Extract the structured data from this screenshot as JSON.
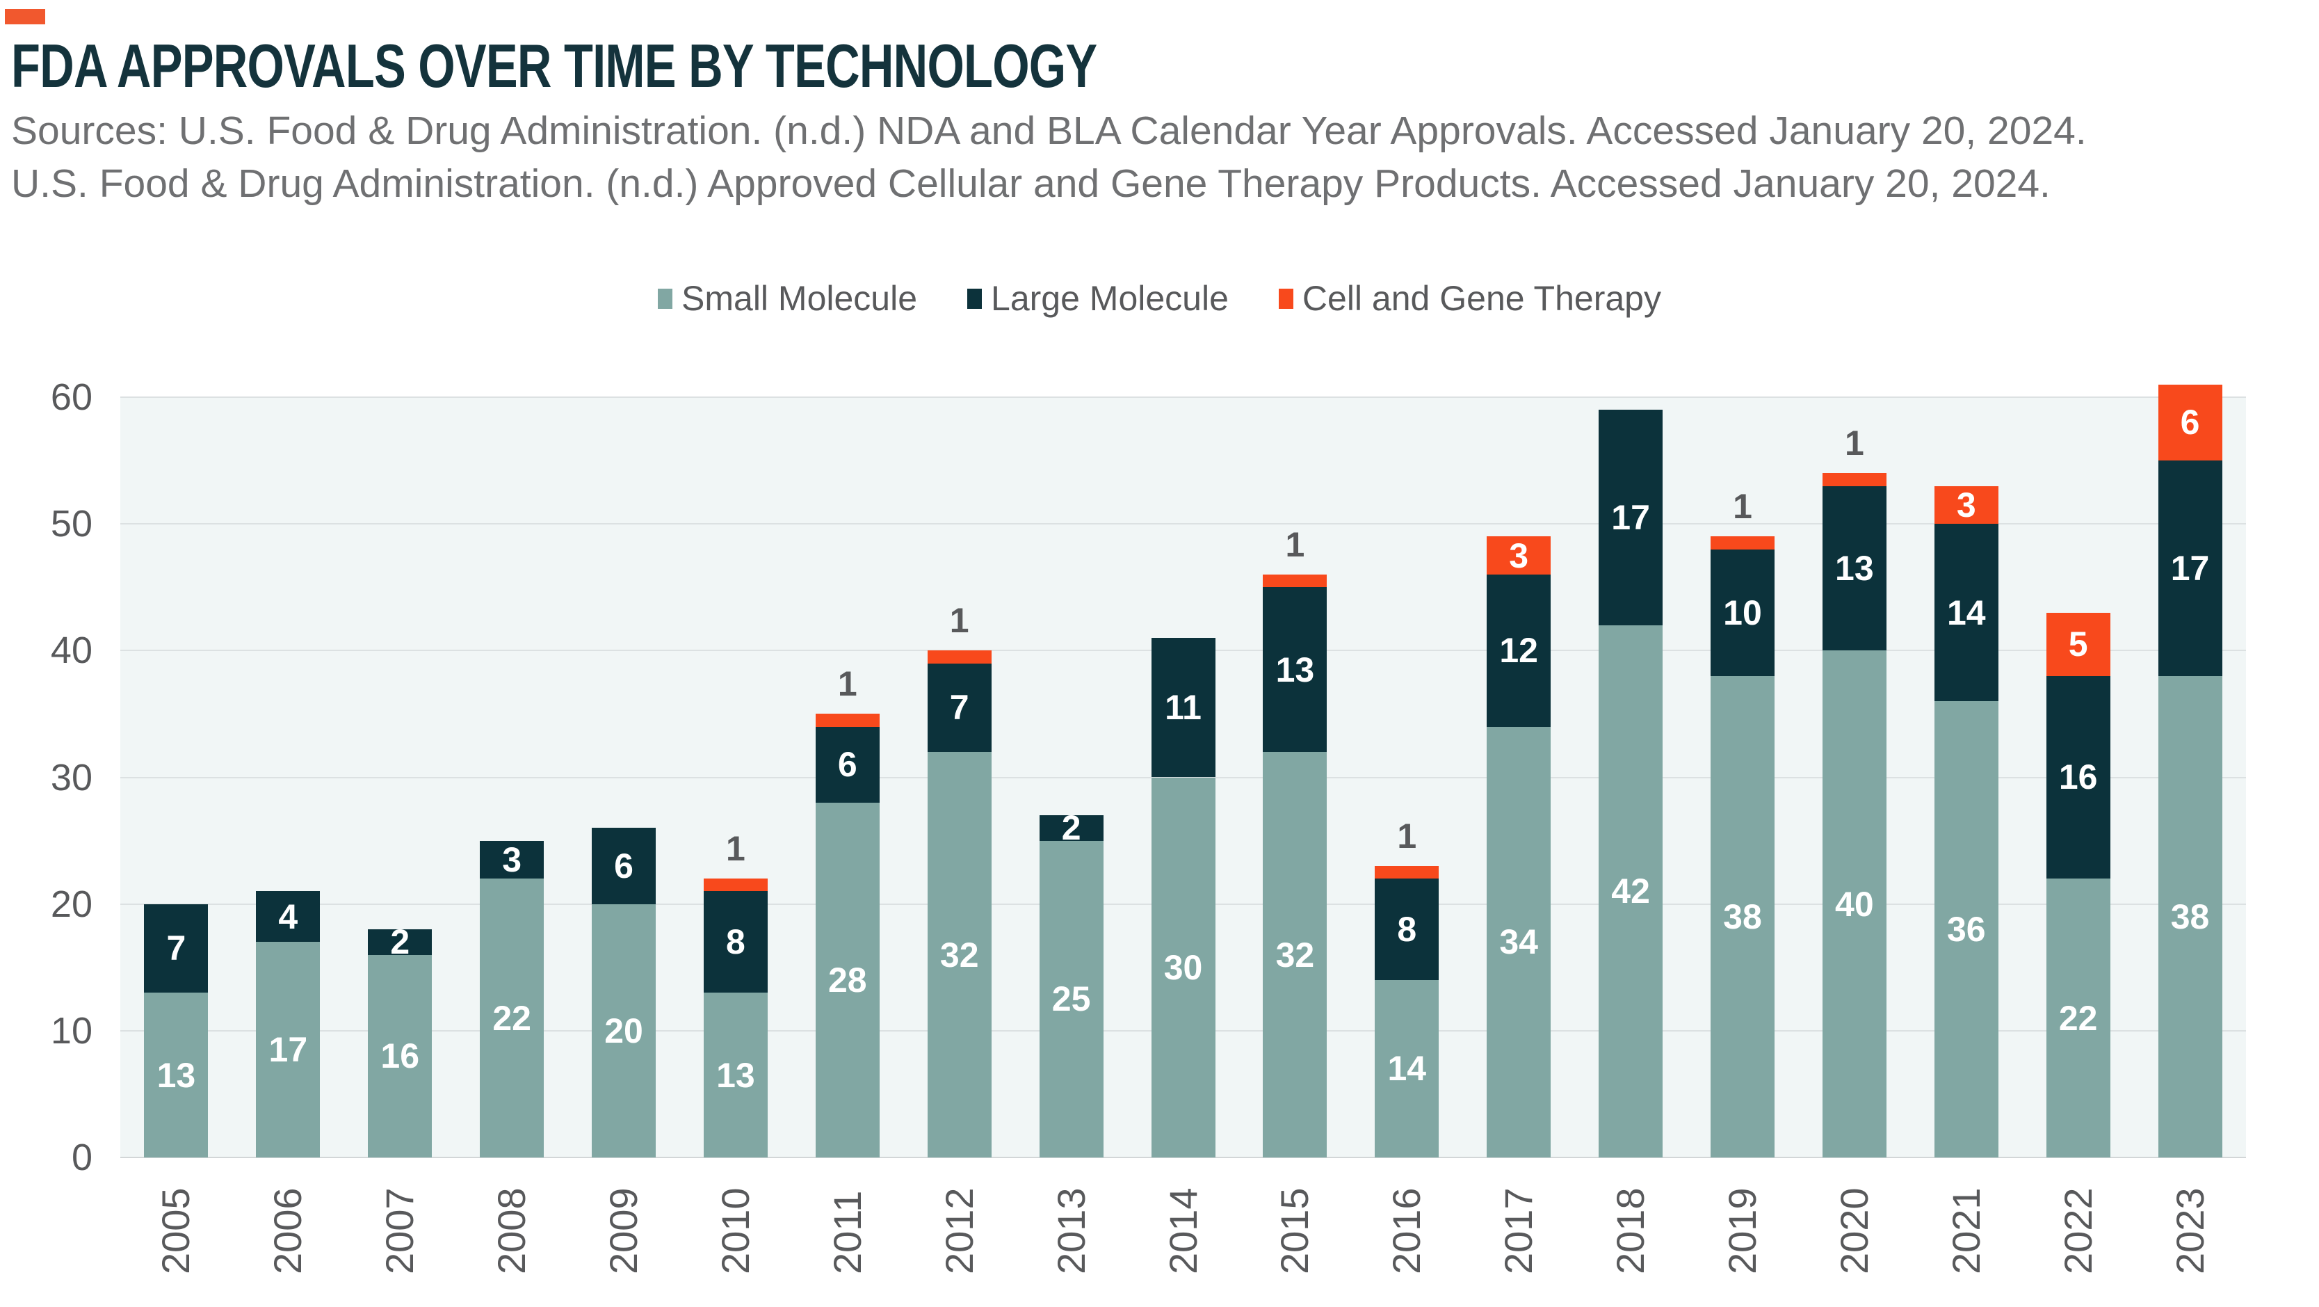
{
  "accent_color": "#F1582E",
  "title": "FDA APPROVALS OVER TIME BY TECHNOLOGY",
  "title_color": "#14333C",
  "sources": [
    "Sources: U.S. Food & Drug Administration. (n.d.) NDA and BLA Calendar Year Approvals. Accessed January 20, 2024.",
    "U.S. Food & Drug Administration. (n.d.) Approved Cellular and Gene Therapy Products. Accessed January 20, 2024."
  ],
  "sources_color": "#6F7072",
  "legend": [
    {
      "label": "Small Molecule",
      "color": "#81A7A3"
    },
    {
      "label": "Large Molecule",
      "color": "#0C323B"
    },
    {
      "label": "Cell and Gene Therapy",
      "color": "#F8491C"
    }
  ],
  "chart_data": {
    "type": "bar",
    "stacked": true,
    "title": "FDA APPROVALS OVER TIME BY TECHNOLOGY",
    "categories": [
      "2005",
      "2006",
      "2007",
      "2008",
      "2009",
      "2010",
      "2011",
      "2012",
      "2013",
      "2014",
      "2015",
      "2016",
      "2017",
      "2018",
      "2019",
      "2020",
      "2021",
      "2022",
      "2023"
    ],
    "series": [
      {
        "name": "Small Molecule",
        "color": "#81A7A3",
        "values": [
          13,
          17,
          16,
          22,
          20,
          13,
          28,
          32,
          25,
          30,
          32,
          14,
          34,
          42,
          38,
          40,
          36,
          22,
          38
        ]
      },
      {
        "name": "Large Molecule",
        "color": "#0C323B",
        "values": [
          7,
          4,
          2,
          3,
          6,
          8,
          6,
          7,
          2,
          11,
          13,
          8,
          12,
          17,
          10,
          13,
          14,
          16,
          17
        ]
      },
      {
        "name": "Cell and Gene Therapy",
        "color": "#F8491C",
        "values": [
          0,
          0,
          0,
          0,
          0,
          1,
          1,
          1,
          0,
          0,
          1,
          1,
          3,
          0,
          1,
          1,
          3,
          5,
          6
        ]
      }
    ],
    "totals": [
      20,
      21,
      18,
      25,
      26,
      22,
      35,
      40,
      27,
      41,
      46,
      23,
      49,
      59,
      49,
      54,
      53,
      43,
      61
    ],
    "xlabel": "",
    "ylabel": "",
    "ylim": [
      0,
      60
    ],
    "yticks": [
      0,
      10,
      20,
      30,
      40,
      50,
      60
    ],
    "grid": true,
    "legend_position": "top",
    "plot_background": "#F1F6F6",
    "gridline_color": "#DCE1E2",
    "value_label_rule": "segment values shown inside in white; values of 1 shown above the bar in gray"
  }
}
